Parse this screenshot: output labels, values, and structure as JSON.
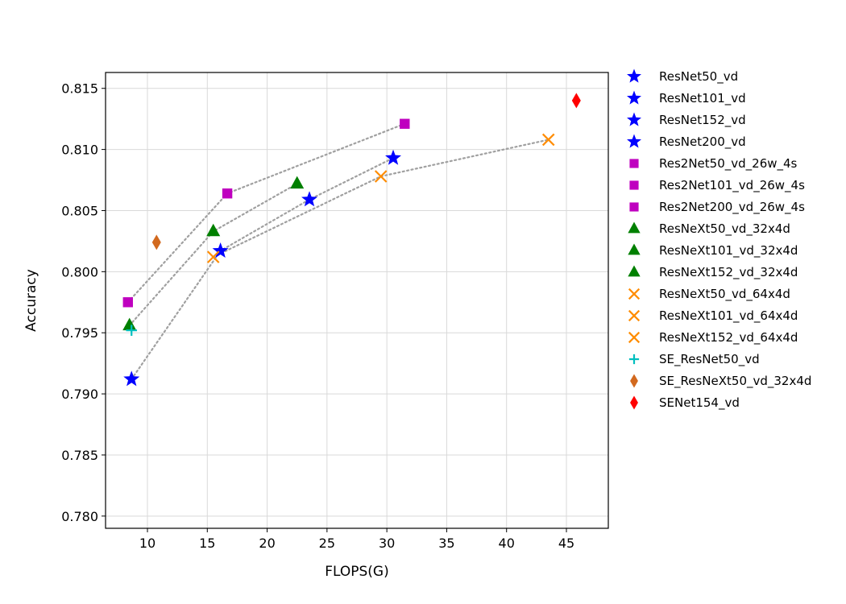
{
  "chart_data": {
    "type": "scatter",
    "title": "",
    "xlabel": "FLOPS(G)",
    "ylabel": "Accuracy",
    "xlim": [
      6.5,
      48.5
    ],
    "ylim": [
      0.779,
      0.8163
    ],
    "xticks": [
      10,
      15,
      20,
      25,
      30,
      35,
      40,
      45
    ],
    "yticks": [
      0.78,
      0.785,
      0.79,
      0.795,
      0.8,
      0.805,
      0.81,
      0.815
    ],
    "ytick_labels": [
      "0.780",
      "0.785",
      "0.790",
      "0.795",
      "0.800",
      "0.805",
      "0.810",
      "0.815"
    ],
    "grid": true,
    "legend_position": "outside-right",
    "series": [
      {
        "name": "ResNet50_vd",
        "marker": "star",
        "color": "#0000ff",
        "x": 8.67,
        "y": 0.7912
      },
      {
        "name": "ResNet101_vd",
        "marker": "star",
        "color": "#0000ff",
        "x": 16.1,
        "y": 0.8017
      },
      {
        "name": "ResNet152_vd",
        "marker": "star",
        "color": "#0000ff",
        "x": 23.53,
        "y": 0.8059
      },
      {
        "name": "ResNet200_vd",
        "marker": "star",
        "color": "#0000ff",
        "x": 30.53,
        "y": 0.8093
      },
      {
        "name": "Res2Net50_vd_26w_4s",
        "marker": "square",
        "color": "#bf00bf",
        "x": 8.37,
        "y": 0.7975
      },
      {
        "name": "Res2Net101_vd_26w_4s",
        "marker": "square",
        "color": "#bf00bf",
        "x": 16.67,
        "y": 0.8064
      },
      {
        "name": "Res2Net200_vd_26w_4s",
        "marker": "square",
        "color": "#bf00bf",
        "x": 31.49,
        "y": 0.8121
      },
      {
        "name": "ResNeXt50_vd_32x4d",
        "marker": "triangle",
        "color": "#008000",
        "x": 8.5,
        "y": 0.7956
      },
      {
        "name": "ResNeXt101_vd_32x4d",
        "marker": "triangle",
        "color": "#008000",
        "x": 15.5,
        "y": 0.8033
      },
      {
        "name": "ResNeXt152_vd_32x4d",
        "marker": "triangle",
        "color": "#008000",
        "x": 22.5,
        "y": 0.8072
      },
      {
        "name": "ResNeXt50_vd_64x4d",
        "marker": "x",
        "color": "#ff8c00",
        "x": 15.5,
        "y": 0.8012
      },
      {
        "name": "ResNeXt101_vd_64x4d",
        "marker": "x",
        "color": "#ff8c00",
        "x": 29.5,
        "y": 0.8078
      },
      {
        "name": "ResNeXt152_vd_64x4d",
        "marker": "x",
        "color": "#ff8c00",
        "x": 43.5,
        "y": 0.8108
      },
      {
        "name": "SE_ResNet50_vd",
        "marker": "plus",
        "color": "#00bfbf",
        "x": 8.67,
        "y": 0.7952
      },
      {
        "name": "SE_ResNeXt50_vd_32x4d",
        "marker": "thin-diamond",
        "color": "#d2691e",
        "x": 10.76,
        "y": 0.8024
      },
      {
        "name": "SENet154_vd",
        "marker": "thin-diamond",
        "color": "#ff0000",
        "x": 45.83,
        "y": 0.814
      }
    ],
    "connecting_lines": [
      {
        "style": "dotted",
        "color": "#a0a0a0",
        "members": [
          "ResNet50_vd",
          "ResNet101_vd",
          "ResNet152_vd",
          "ResNet200_vd"
        ]
      },
      {
        "style": "dotted",
        "color": "#a0a0a0",
        "members": [
          "Res2Net50_vd_26w_4s",
          "Res2Net101_vd_26w_4s",
          "Res2Net200_vd_26w_4s"
        ]
      },
      {
        "style": "dotted",
        "color": "#a0a0a0",
        "members": [
          "ResNeXt50_vd_32x4d",
          "ResNeXt101_vd_32x4d",
          "ResNeXt152_vd_32x4d"
        ]
      },
      {
        "style": "dotted",
        "color": "#a0a0a0",
        "members": [
          "ResNeXt50_vd_64x4d",
          "ResNeXt101_vd_64x4d",
          "ResNeXt152_vd_64x4d"
        ]
      }
    ]
  }
}
